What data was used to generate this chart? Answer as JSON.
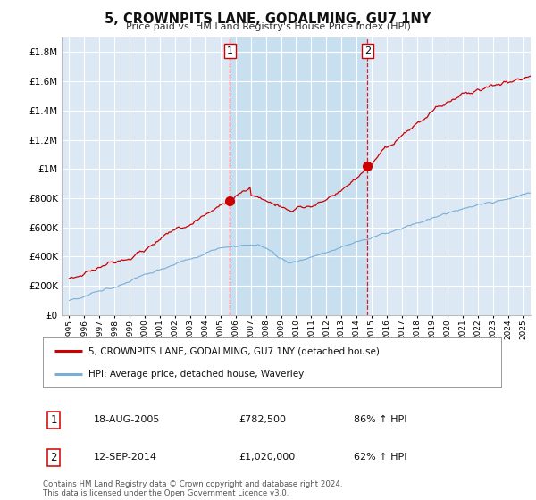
{
  "title": "5, CROWNPITS LANE, GODALMING, GU7 1NY",
  "subtitle": "Price paid vs. HM Land Registry's House Price Index (HPI)",
  "ylim": [
    0,
    1900000
  ],
  "yticks": [
    0,
    200000,
    400000,
    600000,
    800000,
    1000000,
    1200000,
    1400000,
    1600000,
    1800000
  ],
  "ytick_labels": [
    "£0",
    "£200K",
    "£400K",
    "£600K",
    "£800K",
    "£1M",
    "£1.2M",
    "£1.4M",
    "£1.6M",
    "£1.8M"
  ],
  "background_color": "#ffffff",
  "plot_bg_color": "#dce9f5",
  "plot_bg_highlight": "#c8dff0",
  "grid_color": "#ffffff",
  "sale1_year": 2005.63,
  "sale1_price": 782500,
  "sale2_year": 2014.71,
  "sale2_price": 1020000,
  "legend_house": "5, CROWNPITS LANE, GODALMING, GU7 1NY (detached house)",
  "legend_hpi": "HPI: Average price, detached house, Waverley",
  "footer": "Contains HM Land Registry data © Crown copyright and database right 2024.\nThis data is licensed under the Open Government Licence v3.0.",
  "house_color": "#cc0000",
  "hpi_color": "#7aaed6",
  "dashed_color": "#cc0000",
  "xlim_left": 1994.5,
  "xlim_right": 2025.5
}
